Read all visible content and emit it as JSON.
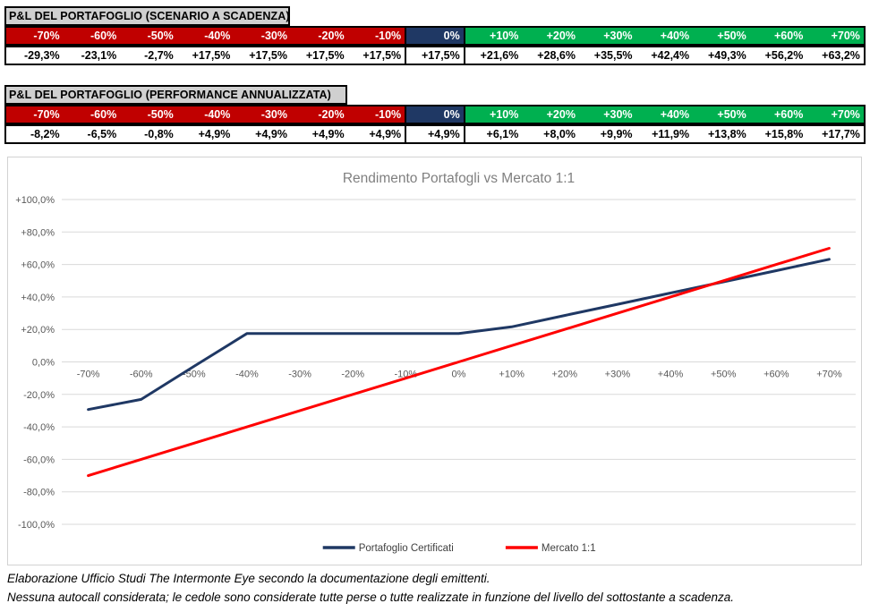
{
  "colors": {
    "negative_header_bg": "#C00000",
    "zero_header_bg": "#1F3864",
    "positive_header_bg": "#00B050",
    "table_title_bg": "#D0D0D0",
    "series_portafoglio": "#1F3864",
    "series_mercato": "#FF0000",
    "gridline": "#D9D9D9",
    "axis_label": "#595959",
    "chart_title": "#7F7F7F",
    "legend_text": "#404040"
  },
  "tables": [
    {
      "title": "P&L DEL PORTAFOGLIO (SCENARIO A SCADENZA)",
      "title_colspan": 5,
      "headers": [
        "-70%",
        "-60%",
        "-50%",
        "-40%",
        "-30%",
        "-20%",
        "-10%",
        "0%",
        "+10%",
        "+20%",
        "+30%",
        "+40%",
        "+50%",
        "+60%",
        "+70%"
      ],
      "values": [
        "-29,3%",
        "-23,1%",
        "-2,7%",
        "+17,5%",
        "+17,5%",
        "+17,5%",
        "+17,5%",
        "+17,5%",
        "+21,6%",
        "+28,6%",
        "+35,5%",
        "+42,4%",
        "+49,3%",
        "+56,2%",
        "+63,2%"
      ]
    },
    {
      "title": "P&L DEL PORTAFOGLIO (PERFORMANCE ANNUALIZZATA)",
      "title_colspan": 6,
      "headers": [
        "-70%",
        "-60%",
        "-50%",
        "-40%",
        "-30%",
        "-20%",
        "-10%",
        "0%",
        "+10%",
        "+20%",
        "+30%",
        "+40%",
        "+50%",
        "+60%",
        "+70%"
      ],
      "values": [
        "-8,2%",
        "-6,5%",
        "-0,8%",
        "+4,9%",
        "+4,9%",
        "+4,9%",
        "+4,9%",
        "+4,9%",
        "+6,1%",
        "+8,0%",
        "+9,9%",
        "+11,9%",
        "+13,8%",
        "+15,8%",
        "+17,7%"
      ]
    }
  ],
  "chart_data": {
    "type": "line",
    "title": "Rendimento Portafogli vs Mercato 1:1",
    "categories": [
      "-70%",
      "-60%",
      "-50%",
      "-40%",
      "-30%",
      "-20%",
      "-10%",
      "0%",
      "+10%",
      "+20%",
      "+30%",
      "+40%",
      "+50%",
      "+60%",
      "+70%"
    ],
    "x_values": [
      -70,
      -60,
      -50,
      -40,
      -30,
      -20,
      -10,
      0,
      10,
      20,
      30,
      40,
      50,
      60,
      70
    ],
    "series": [
      {
        "name": "Portafoglio Certificati",
        "color_key": "series_portafoglio",
        "values": [
          -29.3,
          -23.1,
          -2.7,
          17.5,
          17.5,
          17.5,
          17.5,
          17.5,
          21.6,
          28.6,
          35.5,
          42.4,
          49.3,
          56.2,
          63.2
        ]
      },
      {
        "name": "Mercato 1:1",
        "color_key": "series_mercato",
        "values": [
          -70,
          -60,
          -50,
          -40,
          -30,
          -20,
          -10,
          0,
          10,
          20,
          30,
          40,
          50,
          60,
          70
        ]
      }
    ],
    "xlabel": "",
    "ylabel": "",
    "ylim": [
      -100,
      100
    ],
    "ytick_step": 20,
    "ytick_labels": [
      "+100,0%",
      "+80,0%",
      "+60,0%",
      "+40,0%",
      "+20,0%",
      "0,0%",
      "-20,0%",
      "-40,0%",
      "-60,0%",
      "-80,0%",
      "-100,0%"
    ],
    "grid": true,
    "legend_position": "bottom"
  },
  "footer": {
    "line1": "Elaborazione Ufficio Studi The Intermonte Eye secondo la documentazione degli emittenti.",
    "line2": "Nessuna autocall considerata; le cedole sono considerate tutte perse o tutte realizzate in funzione del livello del sottostante a scadenza."
  }
}
